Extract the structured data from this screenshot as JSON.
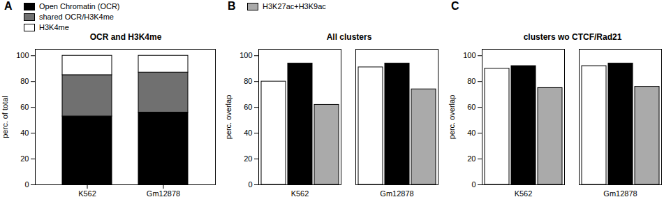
{
  "chart_data": [
    {
      "type": "bar",
      "stacked": true,
      "title": "OCR and H3K4me",
      "ylabel": "perc. of total",
      "annotations": [
        "A"
      ],
      "categories": [
        "K562",
        "Gm12878"
      ],
      "series": [
        {
          "name": "Open Chromatin (OCR)",
          "color": "#000000",
          "values": [
            53,
            56
          ]
        },
        {
          "name": "shared OCR/H3K4me",
          "color": "#707070",
          "values": [
            32,
            31
          ]
        },
        {
          "name": "H3K4me",
          "color": "#ffffff",
          "values": [
            15,
            13
          ]
        }
      ],
      "ylim": [
        0,
        105
      ],
      "yticks": [
        0,
        20,
        40,
        60,
        80,
        100
      ]
    },
    {
      "type": "bar",
      "stacked": false,
      "title": "All clusters",
      "ylabel": "perc. overlap",
      "annotations": [
        "B"
      ],
      "categories": [
        "K562",
        "Gm12878"
      ],
      "series": [
        {
          "color": "#ffffff",
          "values": [
            80,
            91
          ]
        },
        {
          "color": "#000000",
          "values": [
            94,
            94
          ]
        },
        {
          "name": "H3K27ac+H3K9ac",
          "color": "#aaaaaa",
          "values": [
            62,
            74
          ]
        }
      ],
      "ylim": [
        0,
        105
      ],
      "yticks": [
        0,
        20,
        40,
        60,
        80,
        100
      ]
    },
    {
      "type": "bar",
      "stacked": false,
      "title": "clusters wo CTCF/Rad21",
      "ylabel": "perc. overlap",
      "annotations": [
        "C"
      ],
      "categories": [
        "K562",
        "Gm12878"
      ],
      "series": [
        {
          "color": "#ffffff",
          "values": [
            90,
            92
          ]
        },
        {
          "color": "#000000",
          "values": [
            92,
            94
          ]
        },
        {
          "name": "H3K27ac+H3K9ac",
          "color": "#aaaaaa",
          "values": [
            75,
            76
          ]
        }
      ],
      "ylim": [
        0,
        105
      ],
      "yticks": [
        0,
        20,
        40,
        60,
        80,
        100
      ]
    }
  ]
}
